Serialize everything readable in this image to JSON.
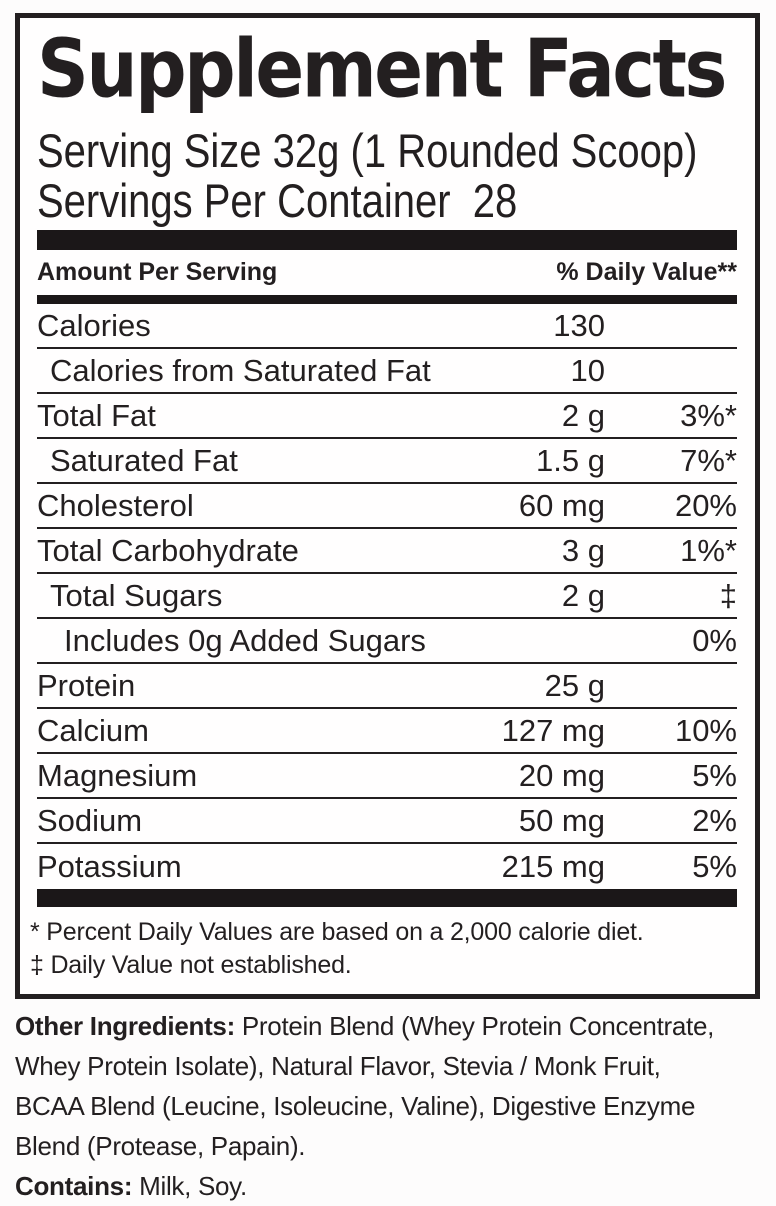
{
  "label": {
    "title": "Supplement Facts",
    "serving_size": "Serving Size 32g (1 Rounded Scoop)",
    "servings_per_container": "Servings Per Container  28",
    "header": {
      "amount_per_serving": "Amount Per Serving",
      "daily_value": "% Daily Value**"
    },
    "rows": [
      {
        "name": "Calories",
        "amount": "130",
        "dv": "",
        "indent": 0
      },
      {
        "name": "Calories from Saturated Fat",
        "amount": "10",
        "dv": "",
        "indent": 1
      },
      {
        "name": "Total Fat",
        "amount": "2 g",
        "dv": "3%*",
        "indent": 0
      },
      {
        "name": "Saturated Fat",
        "amount": "1.5 g",
        "dv": "7%*",
        "indent": 1
      },
      {
        "name": "Cholesterol",
        "amount": "60 mg",
        "dv": "20%",
        "indent": 0
      },
      {
        "name": "Total Carbohydrate",
        "amount": "3 g",
        "dv": "1%*",
        "indent": 0
      },
      {
        "name": "Total Sugars",
        "amount": "2 g",
        "dv": "‡",
        "indent": 1
      },
      {
        "name": "Includes 0g Added Sugars",
        "amount": "",
        "dv": "0%",
        "indent": 2
      },
      {
        "name": "Protein",
        "amount": "25 g",
        "dv": "",
        "indent": 0
      },
      {
        "name": "Calcium",
        "amount": "127 mg",
        "dv": "10%",
        "indent": 0
      },
      {
        "name": "Magnesium",
        "amount": "20 mg",
        "dv": "5%",
        "indent": 0
      },
      {
        "name": "Sodium",
        "amount": "50 mg",
        "dv": "2%",
        "indent": 0
      },
      {
        "name": "Potassium",
        "amount": "215 mg",
        "dv": "5%",
        "indent": 0
      }
    ],
    "footnotes": [
      "* Percent Daily Values are based on a 2,000 calorie diet.",
      "‡ Daily Value not established."
    ]
  },
  "ingredients": {
    "other_label": "Other Ingredients:",
    "other_line1_rest": " Protein Blend (Whey Protein Concentrate,",
    "other_line2": "Whey Protein Isolate), Natural Flavor, Stevia / Monk Fruit,",
    "other_line3": "BCAA Blend (Leucine, Isoleucine, Valine), Digestive Enzyme",
    "other_line4": "Blend (Protease, Papain).",
    "contains_label": "Contains:",
    "contains_rest": " Milk, Soy."
  },
  "colors": {
    "text": "#231f20",
    "bar": "#1b1718",
    "background": "#fdfcfc"
  }
}
